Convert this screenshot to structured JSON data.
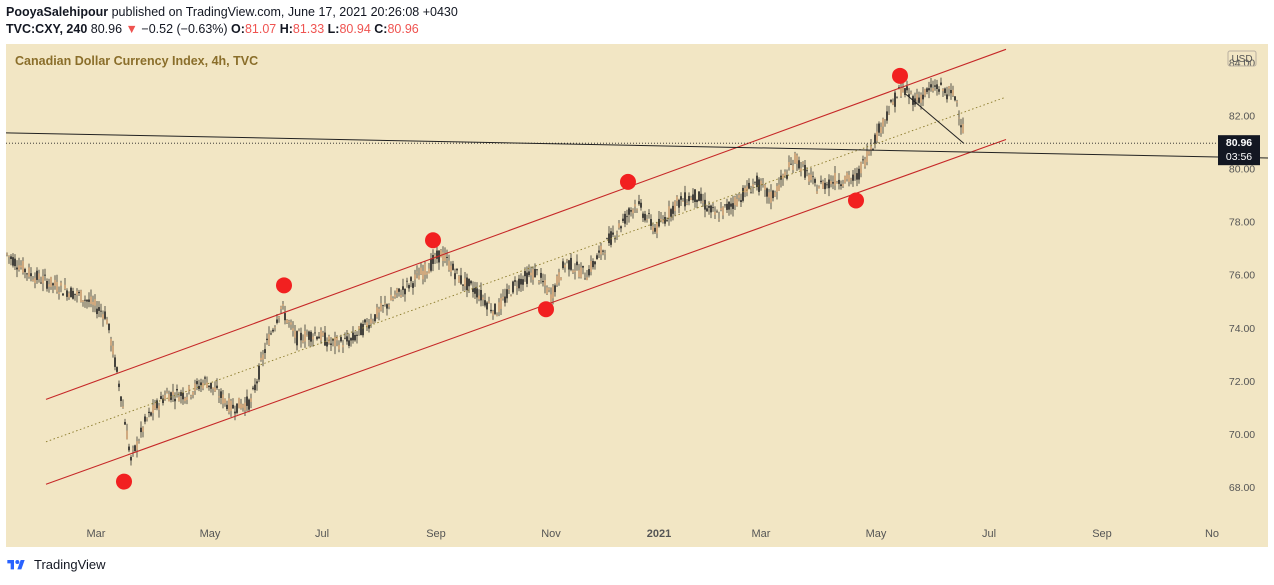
{
  "header": {
    "author": "PooyaSalehipour",
    "published_text": "published on TradingView.com, June 17, 2021 20:26:08 +0430",
    "symbol": "TVC:CXY, 240",
    "last": "80.96",
    "arrow": "▼",
    "change": "−0.52 (−0.63%)",
    "o_label": "O:",
    "o_value": "81.07",
    "h_label": "H:",
    "h_value": "81.33",
    "l_label": "L:",
    "l_value": "80.94",
    "c_label": "C:",
    "c_value": "80.96"
  },
  "chart_data": {
    "type": "candlestick",
    "title": "Canadian Dollar Currency Index, 4h, TVC",
    "currency": "USD",
    "y_ticks": [
      "84.00",
      "82.00",
      "80.00",
      "78.00",
      "76.00",
      "74.00",
      "72.00",
      "70.00",
      "68.00"
    ],
    "y_tick_values": [
      84,
      82,
      80,
      78,
      76,
      74,
      72,
      70,
      68
    ],
    "x_ticks": [
      "Mar",
      "May",
      "Jul",
      "Sep",
      "Nov",
      "2021",
      "Mar",
      "May",
      "Jul",
      "Sep",
      "No"
    ],
    "ylim": [
      66.6,
      84.7
    ],
    "last_price": "80.96",
    "countdown": "03:56",
    "price_anchors": [
      [
        0,
        76.8
      ],
      [
        25,
        76.0
      ],
      [
        55,
        75.5
      ],
      [
        75,
        75.2
      ],
      [
        100,
        74.5
      ],
      [
        115,
        71.5
      ],
      [
        125,
        69.0
      ],
      [
        140,
        70.5
      ],
      [
        160,
        71.5
      ],
      [
        180,
        71.5
      ],
      [
        200,
        72.0
      ],
      [
        225,
        71.0
      ],
      [
        245,
        71.2
      ],
      [
        260,
        73.3
      ],
      [
        275,
        74.8
      ],
      [
        290,
        73.6
      ],
      [
        310,
        73.8
      ],
      [
        325,
        73.4
      ],
      [
        345,
        73.5
      ],
      [
        365,
        74.3
      ],
      [
        390,
        75.2
      ],
      [
        420,
        76.2
      ],
      [
        435,
        76.8
      ],
      [
        455,
        75.8
      ],
      [
        470,
        75.4
      ],
      [
        490,
        74.6
      ],
      [
        510,
        75.7
      ],
      [
        530,
        76.1
      ],
      [
        545,
        75.2
      ],
      [
        560,
        76.5
      ],
      [
        580,
        76.0
      ],
      [
        605,
        77.4
      ],
      [
        630,
        78.7
      ],
      [
        650,
        77.7
      ],
      [
        670,
        78.7
      ],
      [
        690,
        79.0
      ],
      [
        710,
        78.2
      ],
      [
        730,
        78.8
      ],
      [
        750,
        79.5
      ],
      [
        765,
        78.9
      ],
      [
        790,
        80.4
      ],
      [
        810,
        79.3
      ],
      [
        830,
        79.6
      ],
      [
        850,
        79.6
      ],
      [
        862,
        80.6
      ],
      [
        880,
        82.0
      ],
      [
        895,
        83.0
      ],
      [
        910,
        82.6
      ],
      [
        930,
        83.1
      ],
      [
        950,
        82.7
      ],
      [
        958,
        81.3
      ]
    ],
    "channel": {
      "upper": [
        [
          40,
          71.3
        ],
        [
          1000,
          84.5
        ]
      ],
      "middle": [
        [
          40,
          69.7
        ],
        [
          1000,
          82.7
        ]
      ],
      "lower": [
        [
          40,
          68.1
        ],
        [
          1000,
          81.1
        ]
      ]
    },
    "trend_line": [
      [
        0,
        81.35
      ],
      [
        1262,
        80.4
      ]
    ],
    "down_line": [
      [
        900,
        82.8
      ],
      [
        958,
        80.95
      ]
    ],
    "markers": [
      [
        118,
        68.2
      ],
      [
        278,
        75.6
      ],
      [
        427,
        77.3
      ],
      [
        540,
        74.7
      ],
      [
        622,
        79.5
      ],
      [
        850,
        78.8
      ],
      [
        894,
        83.5
      ]
    ]
  },
  "footer": {
    "brand": "TradingView"
  },
  "colors": {
    "chart_bg": "#f2e6c4",
    "channel": "#c62828",
    "marker": "#f22020",
    "candle_up": "#c79a6c",
    "candle_down": "#1a1a1a",
    "axis_text": "#555555",
    "title": "#8a6e2a"
  }
}
